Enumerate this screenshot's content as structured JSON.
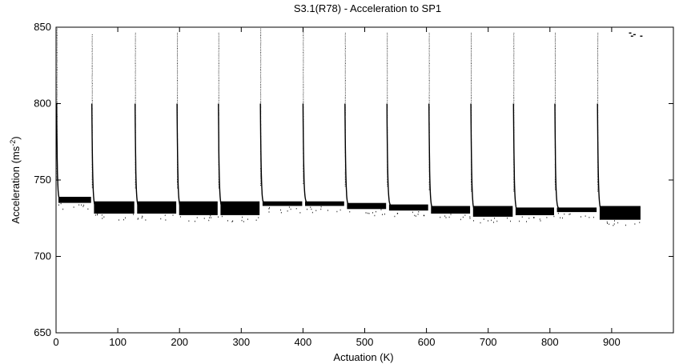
{
  "chart_data": {
    "type": "scatter",
    "title": "S3.1(R78) - Acceleration to SP1",
    "xlabel": "Actuation (K)",
    "ylabel_main": "Acceleration (ms",
    "ylabel_sup": "-2",
    "ylabel_end": ")",
    "xlim": [
      0,
      1000
    ],
    "ylim": [
      650,
      850
    ],
    "x_ticks": [
      0,
      100,
      200,
      300,
      400,
      500,
      600,
      700,
      800,
      900
    ],
    "y_ticks": [
      650,
      700,
      750,
      800,
      850
    ],
    "grid": false,
    "legend": "none",
    "color": "#000000",
    "series": [
      {
        "segments": [
          {
            "x_start": 1,
            "x_end": 58,
            "peak": 850,
            "settled": 737,
            "band_low": 735,
            "band_high": 739
          },
          {
            "x_start": 58,
            "x_end": 128,
            "peak": 845,
            "settled": 732,
            "band_low": 728,
            "band_high": 736
          },
          {
            "x_start": 128,
            "x_end": 196,
            "peak": 846,
            "settled": 732,
            "band_low": 728,
            "band_high": 736
          },
          {
            "x_start": 196,
            "x_end": 263,
            "peak": 846,
            "settled": 732,
            "band_low": 727,
            "band_high": 736
          },
          {
            "x_start": 263,
            "x_end": 331,
            "peak": 846,
            "settled": 732,
            "band_low": 727,
            "band_high": 736
          },
          {
            "x_start": 331,
            "x_end": 400,
            "peak": 850,
            "settled": 734,
            "band_low": 733,
            "band_high": 736
          },
          {
            "x_start": 400,
            "x_end": 468,
            "peak": 850,
            "settled": 735,
            "band_low": 733,
            "band_high": 736
          },
          {
            "x_start": 468,
            "x_end": 536,
            "peak": 846,
            "settled": 733,
            "band_low": 731,
            "band_high": 735
          },
          {
            "x_start": 536,
            "x_end": 604,
            "peak": 846,
            "settled": 733,
            "band_low": 730,
            "band_high": 734
          },
          {
            "x_start": 604,
            "x_end": 672,
            "peak": 846,
            "settled": 731,
            "band_low": 728,
            "band_high": 733
          },
          {
            "x_start": 672,
            "x_end": 741,
            "peak": 846,
            "settled": 730,
            "band_low": 726,
            "band_high": 733
          },
          {
            "x_start": 741,
            "x_end": 808,
            "peak": 846,
            "settled": 730,
            "band_low": 727,
            "band_high": 732
          },
          {
            "x_start": 808,
            "x_end": 877,
            "peak": 846,
            "settled": 731,
            "band_low": 729,
            "band_high": 732
          },
          {
            "x_start": 877,
            "x_end": 948,
            "peak": 846,
            "settled": 730,
            "band_low": 724,
            "band_high": 733
          }
        ],
        "top_cluster": [
          {
            "x": 930,
            "y": 846
          },
          {
            "x": 933,
            "y": 844
          },
          {
            "x": 937,
            "y": 845
          },
          {
            "x": 948,
            "y": 844
          }
        ]
      }
    ]
  }
}
